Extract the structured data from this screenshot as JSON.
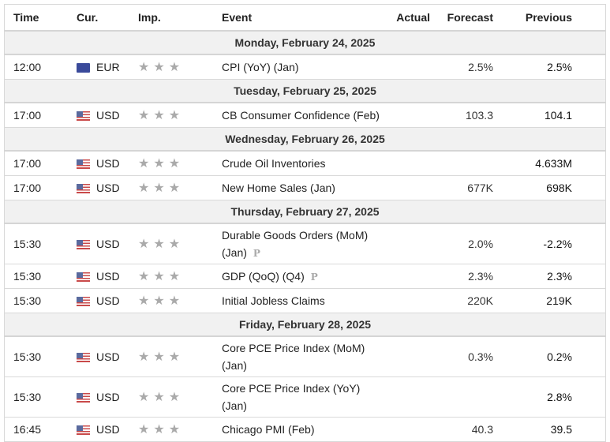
{
  "headers": {
    "time": "Time",
    "cur": "Cur.",
    "imp": "Imp.",
    "event": "Event",
    "actual": "Actual",
    "forecast": "Forecast",
    "previous": "Previous"
  },
  "colors": {
    "star": "#aaaaaa",
    "day_bg": "#f1f1f1"
  },
  "groups": [
    {
      "day": "Monday, February 24, 2025",
      "events": [
        {
          "time": "12:00",
          "cur": "EUR",
          "flag": "eu-flag",
          "importance": 3,
          "event": "CPI (YoY) (Jan)",
          "actual": "",
          "forecast": "2.5%",
          "previous": "2.5%"
        }
      ]
    },
    {
      "day": "Tuesday, February 25, 2025",
      "events": [
        {
          "time": "17:00",
          "cur": "USD",
          "flag": "us-flag",
          "importance": 3,
          "event": "CB Consumer Confidence (Feb)",
          "actual": "",
          "forecast": "103.3",
          "previous": "104.1"
        }
      ]
    },
    {
      "day": "Wednesday, February 26, 2025",
      "events": [
        {
          "time": "17:00",
          "cur": "USD",
          "flag": "us-flag",
          "importance": 3,
          "event": "Crude Oil Inventories",
          "actual": "",
          "forecast": "",
          "previous": "4.633M"
        },
        {
          "time": "17:00",
          "cur": "USD",
          "flag": "us-flag",
          "importance": 3,
          "event": "New Home Sales (Jan)",
          "actual": "",
          "forecast": "677K",
          "previous": "698K"
        }
      ]
    },
    {
      "day": "Thursday, February 27, 2025",
      "events": [
        {
          "time": "15:30",
          "cur": "USD",
          "flag": "us-flag",
          "importance": 3,
          "event": "Durable Goods Orders (MoM) (Jan)",
          "prelim": "P",
          "actual": "",
          "forecast": "2.0%",
          "previous": "-2.2%"
        },
        {
          "time": "15:30",
          "cur": "USD",
          "flag": "us-flag",
          "importance": 3,
          "event": "GDP (QoQ) (Q4)",
          "prelim": "P",
          "actual": "",
          "forecast": "2.3%",
          "previous": "2.3%"
        },
        {
          "time": "15:30",
          "cur": "USD",
          "flag": "us-flag",
          "importance": 3,
          "event": "Initial Jobless Claims",
          "actual": "",
          "forecast": "220K",
          "previous": "219K"
        }
      ]
    },
    {
      "day": "Friday, February 28, 2025",
      "events": [
        {
          "time": "15:30",
          "cur": "USD",
          "flag": "us-flag",
          "importance": 3,
          "event": "Core PCE Price Index (MoM) (Jan)",
          "actual": "",
          "forecast": "0.3%",
          "previous": "0.2%"
        },
        {
          "time": "15:30",
          "cur": "USD",
          "flag": "us-flag",
          "importance": 3,
          "event": "Core PCE Price Index (YoY) (Jan)",
          "actual": "",
          "forecast": "",
          "previous": "2.8%"
        },
        {
          "time": "16:45",
          "cur": "USD",
          "flag": "us-flag",
          "importance": 3,
          "event": "Chicago PMI (Feb)",
          "actual": "",
          "forecast": "40.3",
          "previous": "39.5"
        }
      ]
    }
  ]
}
